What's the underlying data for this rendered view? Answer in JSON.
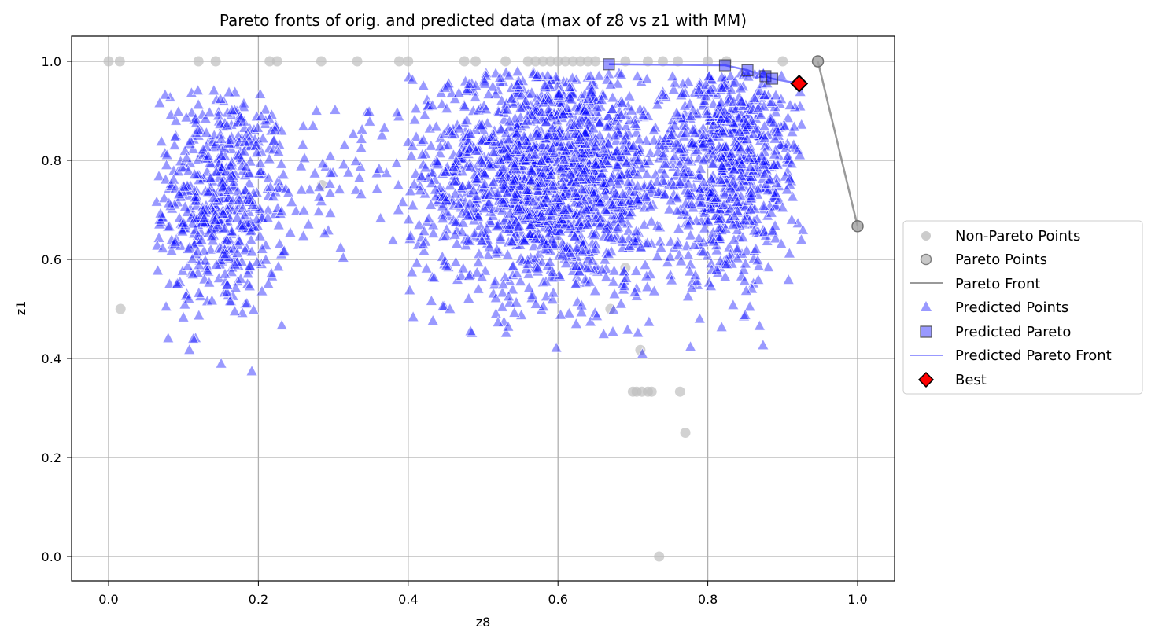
{
  "chart_data": {
    "type": "scatter",
    "title": "Pareto fronts of orig. and predicted data (max of z8 vs z1 with MM)",
    "xlabel": "z8",
    "ylabel": "z1",
    "xlim": [
      -0.05,
      1.05
    ],
    "ylim": [
      -0.05,
      1.05
    ],
    "xticks": [
      0.0,
      0.2,
      0.4,
      0.6,
      0.8,
      1.0
    ],
    "xtick_labels": [
      "0.0",
      "0.2",
      "0.4",
      "0.6",
      "0.8",
      "1.0"
    ],
    "yticks": [
      0.0,
      0.2,
      0.4,
      0.6,
      0.8,
      1.0
    ],
    "ytick_labels": [
      "0.0",
      "0.2",
      "0.4",
      "0.6",
      "0.8",
      "1.0"
    ],
    "grid": true,
    "legend_position": "center right (outside)",
    "colors": {
      "non_pareto": "#bfbfbf",
      "pareto": "#a0a0a0",
      "pareto_front": "#808080",
      "predicted": "#0000ff",
      "predicted_pareto_front": "#8080ff",
      "best": "#ff0000",
      "grid": "#b0b0b0"
    },
    "legend": [
      {
        "label": "Non-Pareto Points",
        "marker": "circle-filled-light-gray"
      },
      {
        "label": "Pareto Points",
        "marker": "circle-gray-outlined"
      },
      {
        "label": "Pareto Front",
        "marker": "line-gray"
      },
      {
        "label": "Predicted Points",
        "marker": "triangle-blue"
      },
      {
        "label": "Predicted Pareto",
        "marker": "square-blue-outlined"
      },
      {
        "label": "Predicted Pareto Front",
        "marker": "line-light-blue"
      },
      {
        "label": "Best",
        "marker": "diamond-red"
      }
    ],
    "series": [
      {
        "name": "Non-Pareto Points",
        "x": [
          0.0,
          0.015,
          0.12,
          0.143,
          0.215,
          0.225,
          0.284,
          0.332,
          0.388,
          0.4,
          0.475,
          0.49,
          0.53,
          0.56,
          0.57,
          0.58,
          0.59,
          0.6,
          0.61,
          0.62,
          0.63,
          0.64,
          0.65,
          0.69,
          0.72,
          0.74,
          0.76,
          0.8,
          0.825,
          0.9,
          0.016,
          0.285,
          0.565,
          0.705,
          0.712,
          0.72,
          0.725,
          0.763,
          0.7,
          0.77,
          0.735,
          0.67,
          0.69,
          0.71
        ],
        "y": [
          1.0,
          1.0,
          1.0,
          1.0,
          1.0,
          1.0,
          1.0,
          1.0,
          1.0,
          1.0,
          1.0,
          1.0,
          1.0,
          1.0,
          1.0,
          1.0,
          1.0,
          1.0,
          1.0,
          1.0,
          1.0,
          1.0,
          1.0,
          1.0,
          1.0,
          1.0,
          1.0,
          1.0,
          1.0,
          1.0,
          0.5,
          0.75,
          0.75,
          0.333,
          0.333,
          0.333,
          0.333,
          0.333,
          0.333,
          0.25,
          0.0,
          0.5,
          0.583,
          0.417
        ]
      },
      {
        "name": "Pareto Points",
        "x": [
          0.947,
          1.0
        ],
        "y": [
          1.0,
          0.667
        ]
      },
      {
        "name": "Pareto Front",
        "x": [
          0.947,
          1.0
        ],
        "y": [
          1.0,
          0.667
        ]
      },
      {
        "name": "Predicted Pareto",
        "x": [
          0.668,
          0.823,
          0.853,
          0.877,
          0.886
        ],
        "y": [
          0.994,
          0.992,
          0.982,
          0.97,
          0.965
        ]
      },
      {
        "name": "Predicted Pareto Front",
        "x": [
          0.668,
          0.823,
          0.853,
          0.877,
          0.886,
          0.922
        ],
        "y": [
          0.994,
          0.992,
          0.982,
          0.97,
          0.965,
          0.955
        ]
      },
      {
        "name": "Best",
        "x": [
          0.922
        ],
        "y": [
          0.955
        ]
      },
      {
        "name": "Predicted Points",
        "approx_count": 3000,
        "clusters": [
          {
            "cx": 0.15,
            "cy": 0.72,
            "sx": 0.045,
            "sy": 0.12,
            "n": 520,
            "xmin": 0.06,
            "xmax": 0.24,
            "ymin": 0.35,
            "ymax": 0.95
          },
          {
            "cx": 0.3,
            "cy": 0.78,
            "sx": 0.06,
            "sy": 0.08,
            "n": 70,
            "xmin": 0.22,
            "xmax": 0.4,
            "ymin": 0.55,
            "ymax": 0.93
          },
          {
            "cx": 0.59,
            "cy": 0.77,
            "sx": 0.09,
            "sy": 0.12,
            "n": 1700,
            "xmin": 0.4,
            "xmax": 0.78,
            "ymin": 0.39,
            "ymax": 0.98
          },
          {
            "cx": 0.83,
            "cy": 0.8,
            "sx": 0.05,
            "sy": 0.12,
            "n": 700,
            "xmin": 0.74,
            "xmax": 0.93,
            "ymin": 0.39,
            "ymax": 0.98
          }
        ]
      }
    ]
  }
}
